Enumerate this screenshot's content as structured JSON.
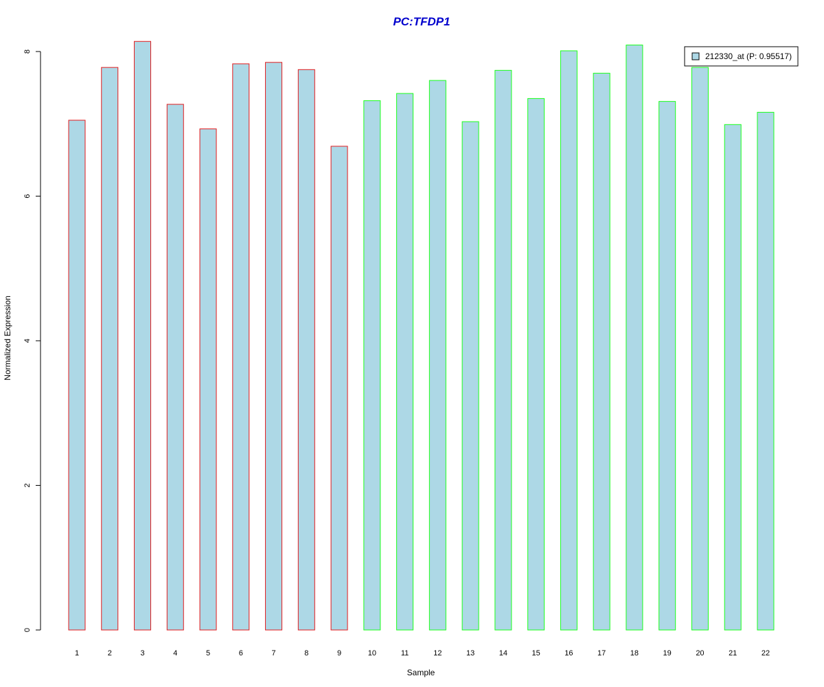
{
  "chart_data": {
    "type": "bar",
    "title": "PC:TFDP1",
    "xlabel": "Sample",
    "ylabel": "Normalized Expression",
    "categories": [
      "1",
      "2",
      "3",
      "4",
      "5",
      "6",
      "7",
      "8",
      "9",
      "10",
      "11",
      "12",
      "13",
      "14",
      "15",
      "16",
      "17",
      "18",
      "19",
      "20",
      "21",
      "22"
    ],
    "series": [
      {
        "name": "212330_at (P: 0.95517)",
        "values": [
          7.05,
          7.78,
          8.14,
          7.27,
          6.93,
          7.83,
          7.85,
          7.75,
          6.69,
          7.32,
          7.42,
          7.6,
          7.03,
          7.74,
          7.35,
          8.01,
          7.7,
          8.09,
          7.31,
          7.78,
          6.99,
          7.16
        ]
      }
    ],
    "group_border_colors": [
      "#e31a1c",
      "#e31a1c",
      "#e31a1c",
      "#e31a1c",
      "#e31a1c",
      "#e31a1c",
      "#e31a1c",
      "#e31a1c",
      "#e31a1c",
      "#1aff1a",
      "#1aff1a",
      "#1aff1a",
      "#1aff1a",
      "#1aff1a",
      "#1aff1a",
      "#1aff1a",
      "#1aff1a",
      "#1aff1a",
      "#1aff1a",
      "#1aff1a",
      "#1aff1a",
      "#1aff1a"
    ],
    "bar_fill": "#add8e6",
    "title_color": "#0000cd",
    "ylim": [
      0,
      8.2
    ],
    "yticks": [
      0,
      2,
      4,
      6,
      8
    ],
    "grid": false,
    "legend_position": "top-right"
  }
}
